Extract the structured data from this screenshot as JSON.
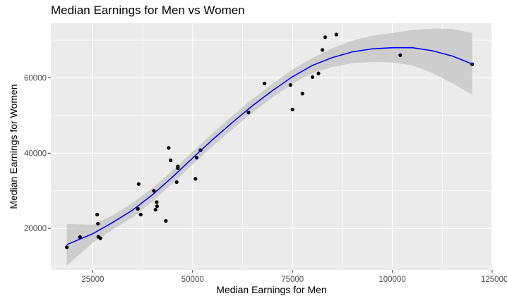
{
  "chart_data": {
    "type": "scatter",
    "title": "Median Earnings for Men vs Women",
    "xlabel": "Median Earnings for Men",
    "ylabel": "Median Earnings for Women",
    "xlim": [
      14500,
      125000
    ],
    "ylim": [
      9000,
      74500
    ],
    "x_ticks": [
      25000,
      50000,
      75000,
      100000,
      125000
    ],
    "x_tick_labels": [
      "25000",
      "50000",
      "75000",
      "100000",
      "125000"
    ],
    "y_ticks": [
      20000,
      40000,
      60000
    ],
    "y_tick_labels": [
      "20000",
      "40000",
      "60000"
    ],
    "grid": true,
    "legend": "none",
    "colors": {
      "panel": "#ebebeb",
      "grid_major": "#ffffff",
      "point": "#000000",
      "smooth_line": "#0000ff",
      "ribbon": "#c8c8c8"
    },
    "points": [
      {
        "x": 18500,
        "y": 15000
      },
      {
        "x": 21800,
        "y": 17700
      },
      {
        "x": 26100,
        "y": 23700
      },
      {
        "x": 26300,
        "y": 21300
      },
      {
        "x": 26400,
        "y": 17800
      },
      {
        "x": 26900,
        "y": 17400
      },
      {
        "x": 36300,
        "y": 25200
      },
      {
        "x": 36500,
        "y": 31800
      },
      {
        "x": 37000,
        "y": 23700
      },
      {
        "x": 40300,
        "y": 30000
      },
      {
        "x": 40700,
        "y": 25000
      },
      {
        "x": 41000,
        "y": 27000
      },
      {
        "x": 41100,
        "y": 25900
      },
      {
        "x": 43300,
        "y": 22000
      },
      {
        "x": 44000,
        "y": 41400
      },
      {
        "x": 44500,
        "y": 38100
      },
      {
        "x": 46000,
        "y": 32300
      },
      {
        "x": 46300,
        "y": 36500
      },
      {
        "x": 46300,
        "y": 36000
      },
      {
        "x": 50700,
        "y": 33200
      },
      {
        "x": 51000,
        "y": 38800
      },
      {
        "x": 52000,
        "y": 40800
      },
      {
        "x": 64000,
        "y": 50800
      },
      {
        "x": 68000,
        "y": 58500
      },
      {
        "x": 74500,
        "y": 58100
      },
      {
        "x": 75000,
        "y": 51600
      },
      {
        "x": 77500,
        "y": 55800
      },
      {
        "x": 80000,
        "y": 60200
      },
      {
        "x": 81500,
        "y": 61200
      },
      {
        "x": 82500,
        "y": 67400
      },
      {
        "x": 83200,
        "y": 70800
      },
      {
        "x": 86000,
        "y": 71500
      },
      {
        "x": 102000,
        "y": 66000
      },
      {
        "x": 120000,
        "y": 63600
      }
    ],
    "smooth": {
      "x": [
        18500,
        25000,
        30000,
        35000,
        40000,
        45000,
        50000,
        55000,
        60000,
        65000,
        70000,
        75000,
        80000,
        85000,
        90000,
        95000,
        100000,
        105000,
        110000,
        115000,
        120000
      ],
      "y": [
        15700,
        18600,
        21600,
        24900,
        29000,
        33700,
        38700,
        43600,
        48200,
        52600,
        56600,
        60300,
        63300,
        65400,
        66900,
        67700,
        68000,
        68000,
        67200,
        65800,
        63700
      ],
      "lower": [
        10200,
        16200,
        19700,
        23000,
        27200,
        32000,
        37000,
        41900,
        46400,
        50800,
        54800,
        58400,
        61300,
        62900,
        63900,
        64200,
        64100,
        63300,
        61300,
        58600,
        55500
      ],
      "upper": [
        21200,
        21000,
        23500,
        26800,
        30800,
        35400,
        40400,
        45300,
        50000,
        54400,
        58400,
        62200,
        65300,
        67900,
        69900,
        71200,
        71900,
        72700,
        73100,
        73000,
        71900
      ]
    }
  }
}
